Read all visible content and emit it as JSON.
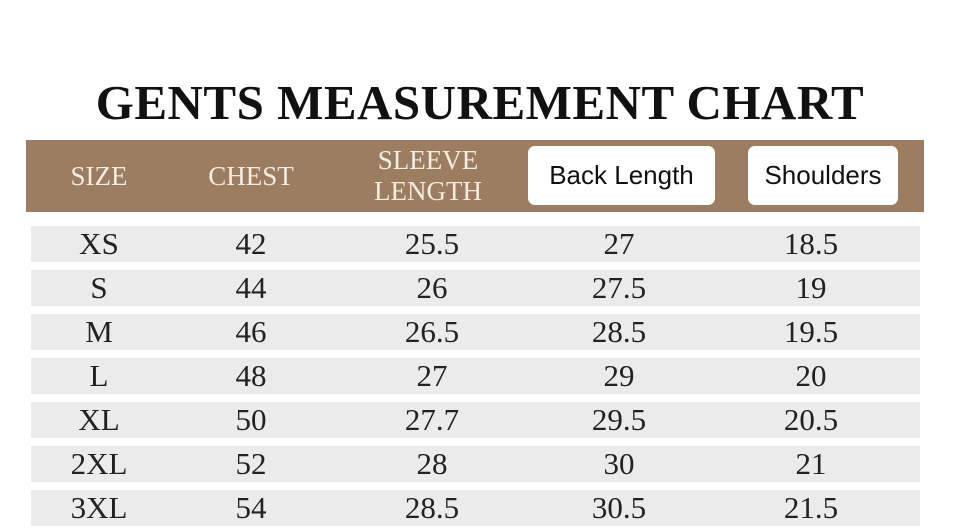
{
  "title": "GENTS MEASUREMENT CHART",
  "colors": {
    "header_bg": "#9c7d61",
    "row_bg": "#ebebeb"
  },
  "columns": [
    "SIZE",
    "CHEST",
    "SLEEVE LENGTH",
    "Back Length",
    "Shoulders"
  ],
  "rows": [
    [
      "XS",
      "42",
      "25.5",
      "27",
      "18.5"
    ],
    [
      "S",
      "44",
      "26",
      "27.5",
      "19"
    ],
    [
      "M",
      "46",
      "26.5",
      "28.5",
      "19.5"
    ],
    [
      "L",
      "48",
      "27",
      "29",
      "20"
    ],
    [
      "XL",
      "50",
      "27.7",
      "29.5",
      "20.5"
    ],
    [
      "2XL",
      "52",
      "28",
      "30",
      "21"
    ],
    [
      "3XL",
      "54",
      "28.5",
      "30.5",
      "21.5"
    ]
  ]
}
